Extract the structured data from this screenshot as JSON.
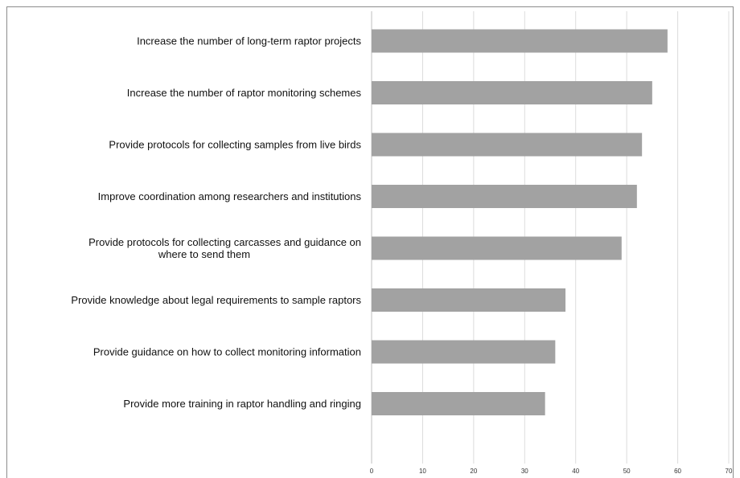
{
  "chart_data": {
    "type": "bar",
    "orientation": "horizontal",
    "categories": [
      [
        "Increase the number of long-term raptor projects"
      ],
      [
        "Increase the number of raptor monitoring schemes"
      ],
      [
        "Provide protocols for collecting samples from live birds"
      ],
      [
        "Improve coordination among researchers and institutions"
      ],
      [
        "Provide protocols for collecting carcasses and guidance on",
        "where to send them"
      ],
      [
        "Provide knowledge about legal requirements to sample raptors"
      ],
      [
        "Provide guidance on how to collect monitoring information"
      ],
      [
        "Provide more training in raptor handling and ringing"
      ]
    ],
    "values": [
      58,
      55,
      53,
      52,
      49,
      38,
      36,
      34
    ],
    "xlim": [
      0,
      70
    ],
    "xticks": [
      0,
      10,
      20,
      30,
      40,
      50,
      60,
      70
    ],
    "grid": true,
    "bar_color": "#a2a2a2",
    "title": "",
    "xlabel": "",
    "ylabel": ""
  }
}
